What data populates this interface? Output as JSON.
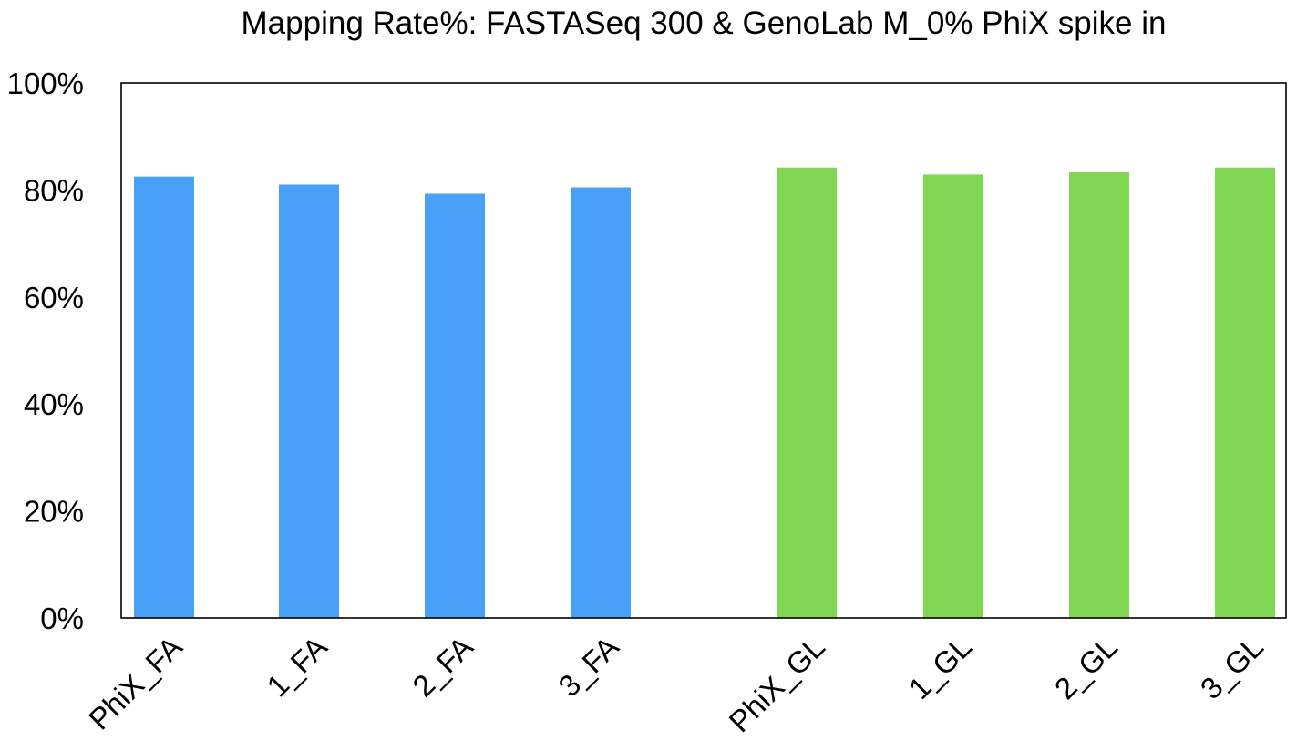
{
  "chart_data": {
    "type": "bar",
    "title": "Mapping Rate%: FASTASeq 300 & GenoLab M_0% PhiX spike in",
    "xlabel": "",
    "ylabel": "",
    "ylim": [
      0,
      100
    ],
    "yticks": [
      "0%",
      "20%",
      "40%",
      "60%",
      "80%",
      "100%"
    ],
    "ytick_values": [
      0,
      20,
      40,
      60,
      80,
      100
    ],
    "grid": false,
    "legend": "none",
    "categories": [
      "PhiX_FA",
      "1_FA",
      "2_FA",
      "3_FA",
      "PhiX_GL",
      "1_GL",
      "2_GL",
      "3_GL"
    ],
    "values": [
      82.5,
      81.0,
      79.3,
      80.5,
      84.2,
      82.9,
      83.3,
      84.2
    ],
    "colors": [
      "#48a0f8",
      "#48a0f8",
      "#48a0f8",
      "#48a0f8",
      "#81d653",
      "#81d653",
      "#81d653",
      "#81d653"
    ]
  }
}
